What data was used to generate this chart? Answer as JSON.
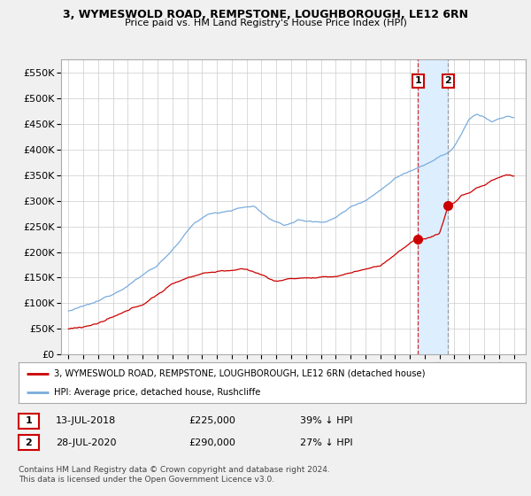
{
  "title1": "3, WYMESWOLD ROAD, REMPSTONE, LOUGHBOROUGH, LE12 6RN",
  "title2": "Price paid vs. HM Land Registry's House Price Index (HPI)",
  "legend_red": "3, WYMESWOLD ROAD, REMPSTONE, LOUGHBOROUGH, LE12 6RN (detached house)",
  "legend_blue": "HPI: Average price, detached house, Rushcliffe",
  "sale1_date": "13-JUL-2018",
  "sale1_price": "£225,000",
  "sale1_hpi": "39% ↓ HPI",
  "sale1_year": 2018.54,
  "sale1_value": 225000,
  "sale2_date": "28-JUL-2020",
  "sale2_price": "£290,000",
  "sale2_hpi": "27% ↓ HPI",
  "sale2_year": 2020.57,
  "sale2_value": 290000,
  "footer": "Contains HM Land Registry data © Crown copyright and database right 2024.\nThis data is licensed under the Open Government Licence v3.0.",
  "ylim": [
    0,
    575000
  ],
  "yticks": [
    0,
    50000,
    100000,
    150000,
    200000,
    250000,
    300000,
    350000,
    400000,
    450000,
    500000,
    550000
  ],
  "bg_color": "#f0f0f0",
  "plot_bg": "#ffffff",
  "red_color": "#cc0000",
  "blue_color": "#7aacdc",
  "shade_color": "#ddeeff"
}
